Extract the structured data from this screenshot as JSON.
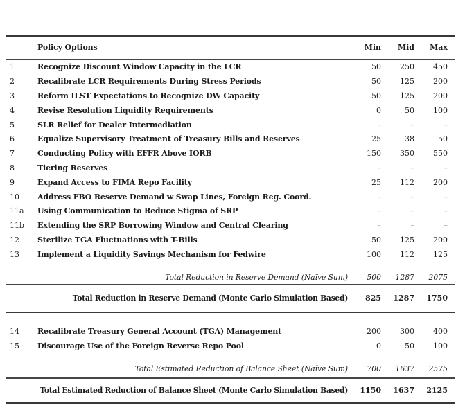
{
  "header": {
    "policy": "Policy Options",
    "min": "Min",
    "mid": "Mid",
    "max": "Max"
  },
  "rows": [
    {
      "num": "1",
      "label": "Recognize Discount Window Capacity in the LCR",
      "min": "50",
      "mid": "250",
      "max": "450"
    },
    {
      "num": "2",
      "label": "Recalibrate LCR Requirements During Stress Periods",
      "min": "50",
      "mid": "125",
      "max": "200"
    },
    {
      "num": "3",
      "label": "Reform ILST Expectations to Recognize DW Capacity",
      "min": "50",
      "mid": "125",
      "max": "200"
    },
    {
      "num": "4",
      "label": "Revise Resolution Liquidity Requirements",
      "min": "0",
      "mid": "50",
      "max": "100"
    },
    {
      "num": "5",
      "label": "SLR Relief for Dealer Intermediation",
      "min": "–",
      "mid": "–",
      "max": "–"
    },
    {
      "num": "6",
      "label": "Equalize Supervisory Treatment of Treasury Bills and Reserves",
      "min": "25",
      "mid": "38",
      "max": "50"
    },
    {
      "num": "7",
      "label": "Conducting Policy with EFFR Above IORB",
      "min": "150",
      "mid": "350",
      "max": "550"
    },
    {
      "num": "8",
      "label": "Tiering Reserves",
      "min": "–",
      "mid": "–",
      "max": "–"
    },
    {
      "num": "9",
      "label": "Expand Access to FIMA Repo Facility",
      "min": "25",
      "mid": "112",
      "max": "200"
    },
    {
      "num": "10",
      "label": "Address FBO Reserve Demand w Swap Lines, Foreign Reg. Coord.",
      "min": "–",
      "mid": "–",
      "max": "–"
    },
    {
      "num": "11a",
      "label": "Using Communication to Reduce Stigma of SRP",
      "min": "–",
      "mid": "–",
      "max": "–"
    },
    {
      "num": "11b",
      "label": "Extending the SRP Borrowing Window and Central Clearing",
      "min": "–",
      "mid": "–",
      "max": "–"
    },
    {
      "num": "12",
      "label": "Sterilize TGA Fluctuations with T-Bills",
      "min": "50",
      "mid": "125",
      "max": "200"
    },
    {
      "num": "13",
      "label": "Implement a Liquidity Savings Mechanism for Fedwire",
      "min": "100",
      "mid": "112",
      "max": "125"
    }
  ],
  "reserve_totals": {
    "naive": {
      "label": "Total Reduction in Reserve Demand (Naïve Sum)",
      "min": "500",
      "mid": "1287",
      "max": "2075"
    },
    "monte_carlo": {
      "label": "Total Reduction in Reserve Demand (Monte Carlo Simulation Based)",
      "min": "825",
      "mid": "1287",
      "max": "1750"
    }
  },
  "rows2": [
    {
      "num": "14",
      "label": "Recalibrate Treasury General Account (TGA) Management",
      "min": "200",
      "mid": "300",
      "max": "400"
    },
    {
      "num": "15",
      "label": "Discourage Use of the Foreign Reverse Repo Pool",
      "min": "0",
      "mid": "50",
      "max": "100"
    }
  ],
  "balance_totals": {
    "naive": {
      "label": "Total Estimated Reduction of Balance Sheet (Naïve Sum)",
      "min": "700",
      "mid": "1637",
      "max": "2575"
    },
    "monte_carlo": {
      "label": "Total Estimated Reduction of Balance Sheet (Monte Carlo Simulation Based)",
      "min": "1150",
      "mid": "1637",
      "max": "2125"
    }
  }
}
